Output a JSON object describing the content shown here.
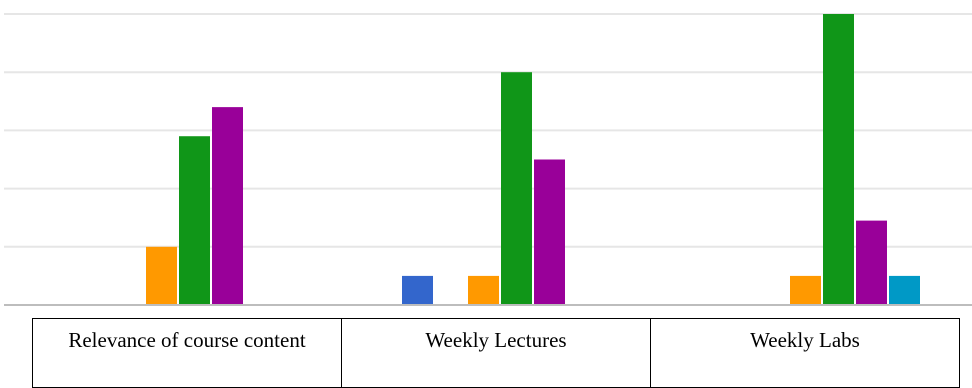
{
  "chart_data": {
    "type": "bar",
    "categories": [
      "Relevance of course content",
      "Weekly Lectures",
      "Weekly Labs"
    ],
    "series": [
      {
        "color": "#3366cc",
        "values": [
          0,
          1,
          0
        ]
      },
      {
        "color": "#ff9900",
        "values": [
          0,
          0,
          0
        ]
      },
      {
        "color": "#ff9900",
        "values": [
          2,
          1,
          1
        ]
      },
      {
        "color": "#109618",
        "values": [
          5.8,
          8,
          10
        ]
      },
      {
        "color": "#990099",
        "values": [
          6.8,
          5,
          2.9
        ]
      },
      {
        "color": "#0099c6",
        "values": [
          0,
          0,
          1
        ]
      }
    ],
    "ylim": [
      0,
      10
    ],
    "grid": true,
    "legend": "none"
  }
}
